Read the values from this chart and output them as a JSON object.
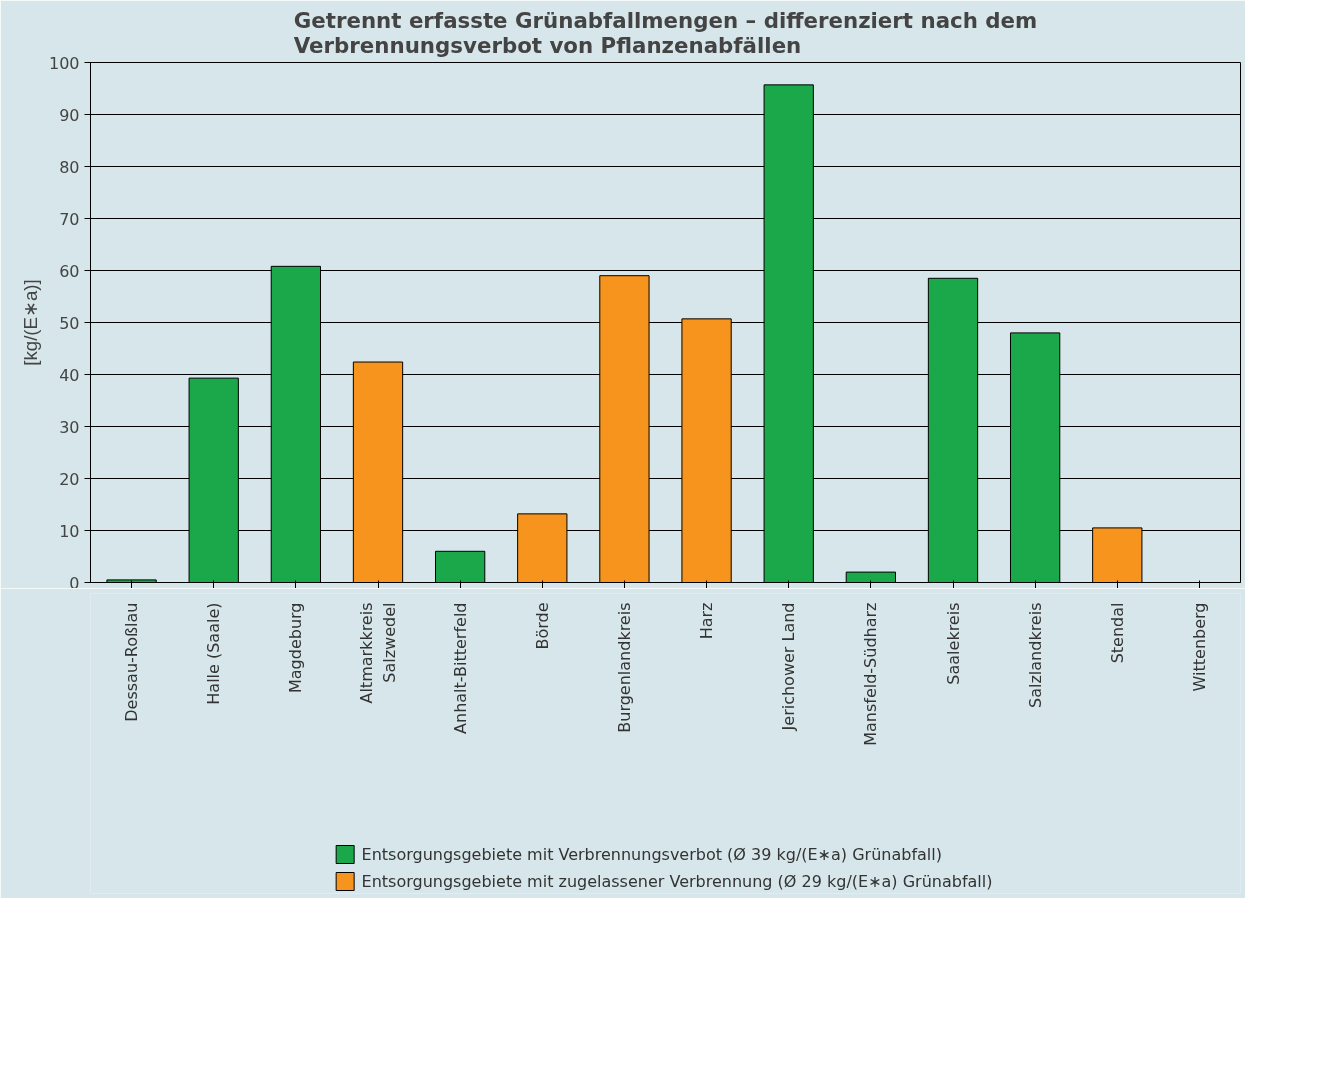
{
  "chart_data": {
    "type": "bar",
    "title": "Getrennt erfasste Grünabfallmengen – differenziert nach dem\nVerbrennungsverbot von Pflanzenabfällen",
    "ylabel": "[kg/(E∗a)]",
    "categories": [
      "Dessau-Roßlau",
      "Halle (Saale)",
      "Magdeburg",
      "Altmarkkreis\nSalzwedel",
      "Anhalt-Bitterfeld",
      "Börde",
      "Burgenlandkreis",
      "Harz",
      "Jerichower Land",
      "Mansfeld-Südharz",
      "Saalekreis",
      "Salzlandkreis",
      "Stendal",
      "Wittenberg"
    ],
    "series": [
      {
        "name": "Entsorgungsgebiete mit Verbrennungsverbot (Ø 39 kg/(E∗a) Grünabfall)",
        "color": "#1aa84a",
        "values": [
          0.5,
          39.3,
          60.8,
          null,
          6,
          null,
          null,
          null,
          95.7,
          2,
          58.5,
          48,
          null,
          null
        ]
      },
      {
        "name": "Entsorgungsgebiete mit zugelassener Verbrennung (Ø 29 kg/(E∗a) Grünabfall)",
        "color": "#f7941d",
        "values": [
          null,
          null,
          null,
          42.4,
          null,
          13.2,
          59,
          50.7,
          null,
          null,
          null,
          null,
          10.5,
          null
        ]
      }
    ],
    "ylim": [
      0,
      100
    ],
    "yticks": [
      0,
      10,
      20,
      30,
      40,
      50,
      60,
      70,
      80,
      90,
      100
    ],
    "grid": "y",
    "legend": "bottom"
  }
}
